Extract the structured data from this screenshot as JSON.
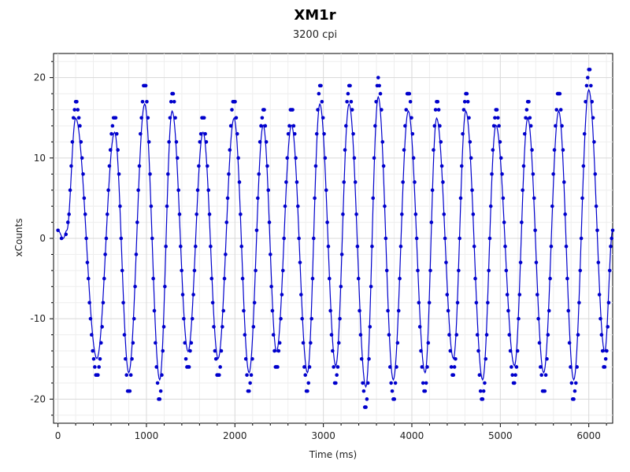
{
  "chart_data": {
    "type": "line",
    "title": "XM1r",
    "subtitle": "3200 cpi",
    "xlabel": "Time (ms)",
    "ylabel": "xCounts",
    "xlim": [
      -50,
      6270
    ],
    "ylim": [
      -23,
      23
    ],
    "x_ticks": [
      0,
      1000,
      2000,
      3000,
      4000,
      5000,
      6000
    ],
    "x_tick_labels": [
      "0",
      "1000",
      "2000",
      "3000",
      "4000",
      "5000",
      "6000"
    ],
    "y_ticks": [
      -20,
      -10,
      0,
      10,
      20
    ],
    "y_tick_labels": [
      "-20",
      "-10",
      "0",
      "10",
      "20"
    ],
    "grid": true,
    "series_color": "#0000cc",
    "oscillation_peaks": [
      {
        "x": 200,
        "y": 17
      },
      {
        "x": 440,
        "y": -17
      },
      {
        "x": 640,
        "y": 15
      },
      {
        "x": 800,
        "y": -19
      },
      {
        "x": 980,
        "y": 19
      },
      {
        "x": 1150,
        "y": -20
      },
      {
        "x": 1290,
        "y": 18
      },
      {
        "x": 1470,
        "y": -16
      },
      {
        "x": 1640,
        "y": 15
      },
      {
        "x": 1810,
        "y": -17
      },
      {
        "x": 1990,
        "y": 17
      },
      {
        "x": 2160,
        "y": -19
      },
      {
        "x": 2320,
        "y": 16
      },
      {
        "x": 2470,
        "y": -16
      },
      {
        "x": 2640,
        "y": 16
      },
      {
        "x": 2820,
        "y": -19
      },
      {
        "x": 2960,
        "y": 19
      },
      {
        "x": 3140,
        "y": -18
      },
      {
        "x": 3290,
        "y": 19
      },
      {
        "x": 3480,
        "y": -21
      },
      {
        "x": 3620,
        "y": 20
      },
      {
        "x": 3790,
        "y": -20
      },
      {
        "x": 3960,
        "y": 18
      },
      {
        "x": 4150,
        "y": -19
      },
      {
        "x": 4280,
        "y": 17
      },
      {
        "x": 4470,
        "y": -17
      },
      {
        "x": 4610,
        "y": 18
      },
      {
        "x": 4800,
        "y": -20
      },
      {
        "x": 4950,
        "y": 16
      },
      {
        "x": 5160,
        "y": -18
      },
      {
        "x": 5310,
        "y": 17
      },
      {
        "x": 5490,
        "y": -19
      },
      {
        "x": 5660,
        "y": 18
      },
      {
        "x": 5830,
        "y": -20
      },
      {
        "x": 6000,
        "y": 21
      },
      {
        "x": 6180,
        "y": -16
      }
    ],
    "start_point": {
      "x": 0,
      "y": 1
    },
    "end_point": {
      "x": 6270,
      "y": 1
    }
  }
}
